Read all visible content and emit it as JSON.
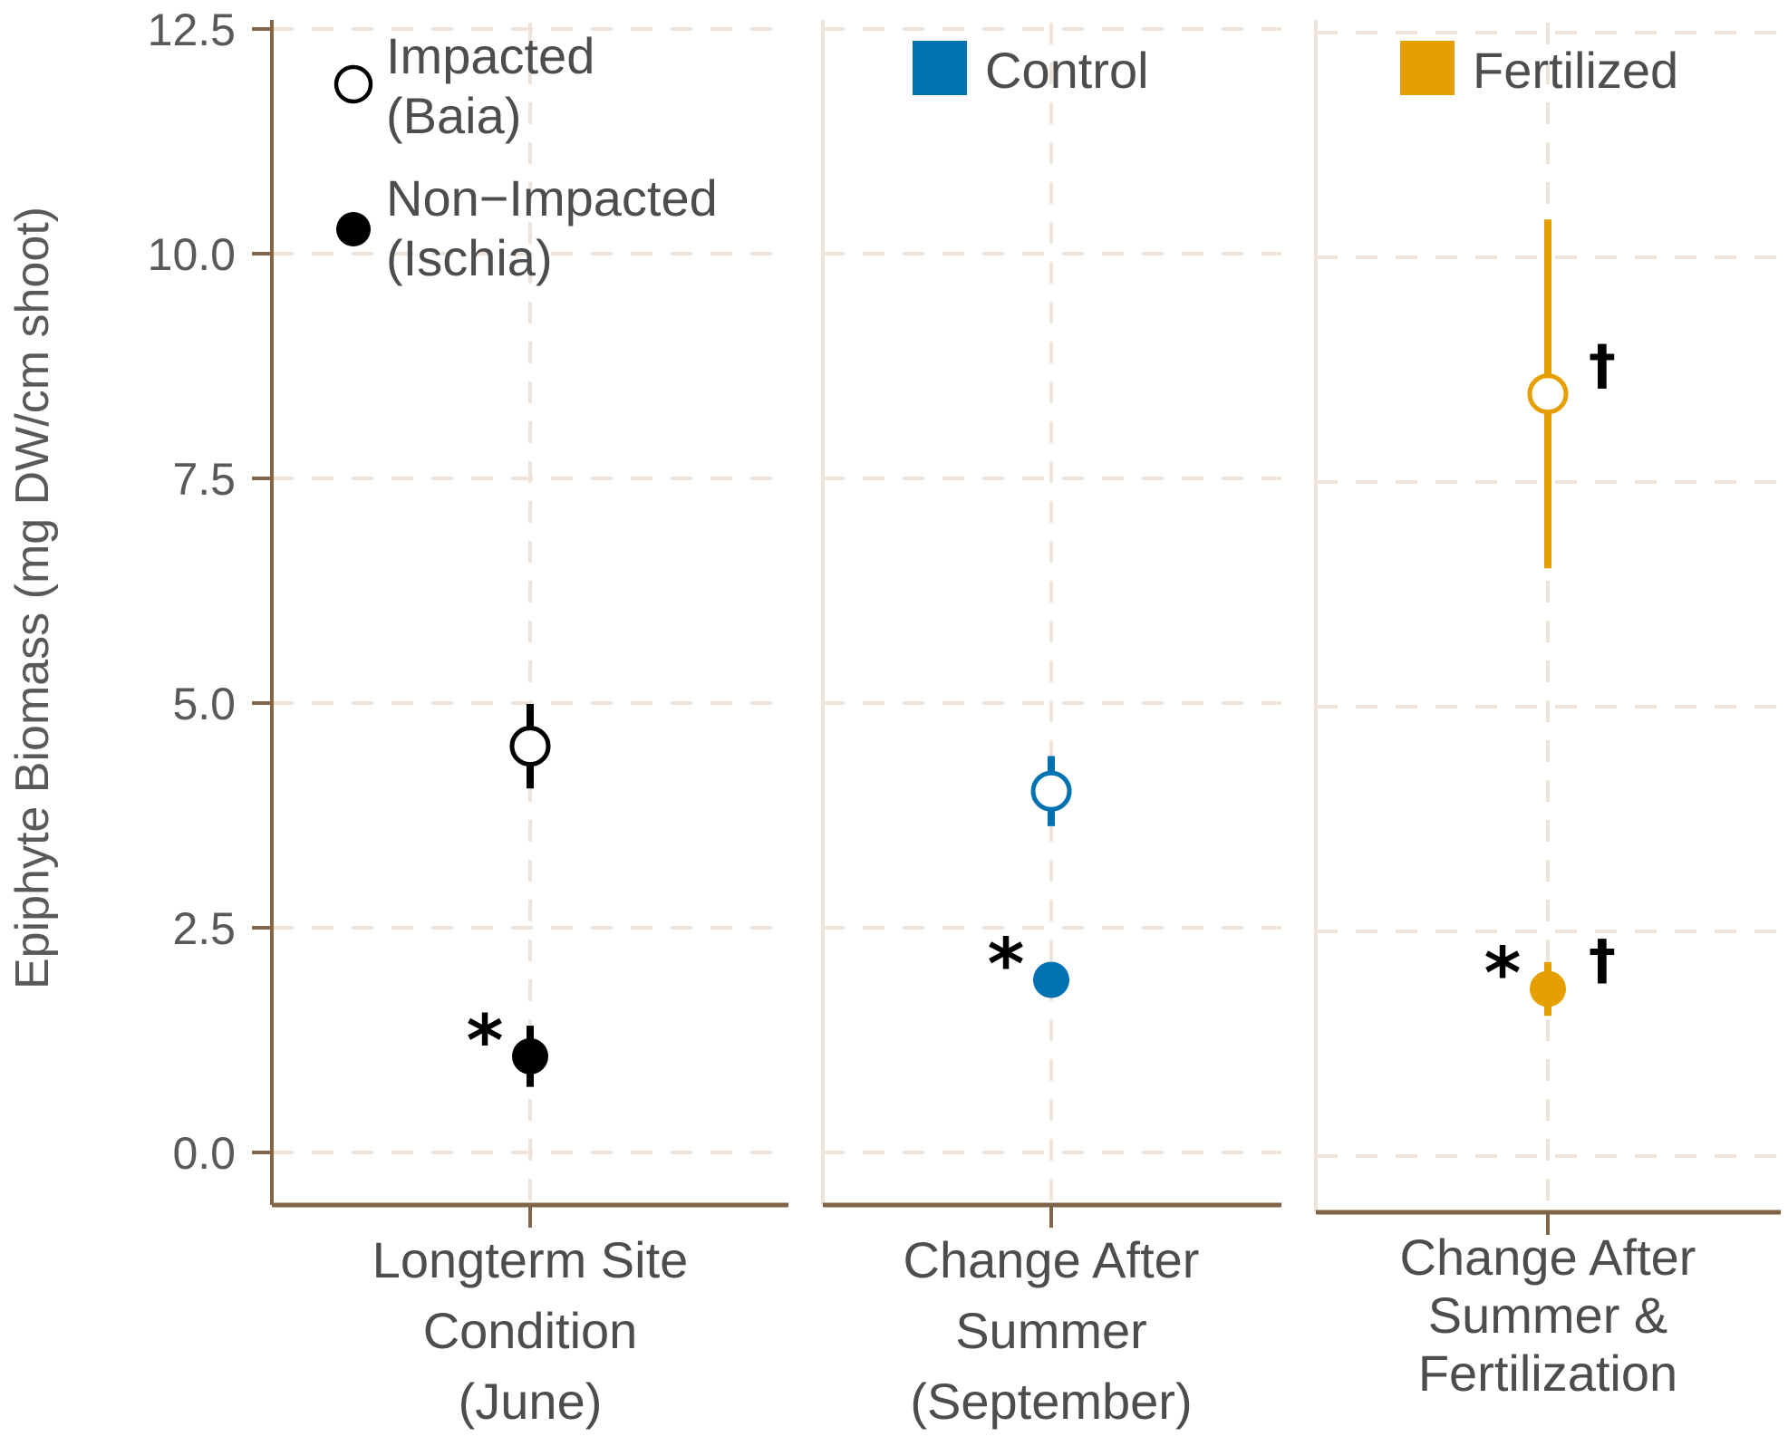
{
  "chart_data": {
    "type": "scatter",
    "ylabel": "Epiphyte Biomass (mg DW/cm shoot)",
    "ylim": [
      -0.55,
      12.5
    ],
    "yticks": [
      "0.0",
      "2.5",
      "5.0",
      "7.5",
      "10.0",
      "12.5"
    ],
    "ytick_values": [
      0,
      2.5,
      5,
      7.5,
      10,
      12.5
    ],
    "grid": true,
    "panels": [
      {
        "id": "june",
        "label_lines": [
          "Longterm Site",
          "Condition",
          "(June)"
        ],
        "color": "#000000",
        "legend": [
          {
            "symbol": "open-circle",
            "lines": [
              "Impacted",
              "(Baia)"
            ]
          },
          {
            "symbol": "filled-circle",
            "lines": [
              "Non−Impacted",
              "(Ischia)"
            ]
          }
        ],
        "points": [
          {
            "site": "Impacted (Baia)",
            "filled": false,
            "y": 4.52,
            "ymin": 4.05,
            "ymax": 4.99,
            "annotations": []
          },
          {
            "site": "Non-Impacted (Ischia)",
            "filled": true,
            "y": 1.07,
            "ymin": 0.73,
            "ymax": 1.41,
            "annotations": [
              "*"
            ]
          }
        ]
      },
      {
        "id": "september",
        "label_lines": [
          "Change After",
          "Summer",
          "(September)"
        ],
        "color": "#0072B2",
        "legend": [
          {
            "symbol": "square",
            "lines": [
              "Control"
            ]
          }
        ],
        "points": [
          {
            "site": "Impacted (Baia)",
            "filled": false,
            "y": 4.02,
            "ymin": 3.63,
            "ymax": 4.41,
            "annotations": []
          },
          {
            "site": "Non-Impacted (Ischia)",
            "filled": true,
            "y": 1.92,
            "ymin": 1.82,
            "ymax": 2.02,
            "annotations": [
              "*"
            ]
          }
        ]
      },
      {
        "id": "fertilization",
        "label_lines": [
          "Change After",
          "Summer &",
          "Fertilization"
        ],
        "color": "#E69F00",
        "legend": [
          {
            "symbol": "square",
            "lines": [
              "Fertilized"
            ]
          }
        ],
        "points": [
          {
            "site": "Impacted (Baia)",
            "filled": false,
            "y": 8.44,
            "ymin": 6.5,
            "ymax": 10.38,
            "annotations": [
              "†"
            ]
          },
          {
            "site": "Non-Impacted (Ischia)",
            "filled": true,
            "y": 1.82,
            "ymin": 1.52,
            "ymax": 2.12,
            "annotations": [
              "*",
              "†"
            ]
          }
        ]
      }
    ]
  }
}
